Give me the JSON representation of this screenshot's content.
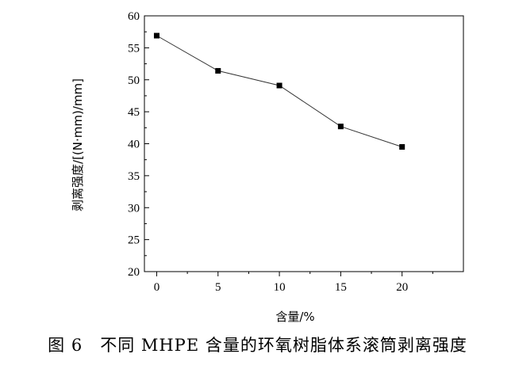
{
  "chart_data": {
    "type": "line",
    "title": "",
    "xlabel": "含量/%",
    "ylabel": "剥离强度/[(N·mm)/mm]",
    "x": [
      0,
      5,
      10,
      15,
      20
    ],
    "series": [
      {
        "values": [
          56.9,
          51.4,
          49.1,
          42.7,
          39.5
        ]
      }
    ],
    "xlim": [
      -1,
      25
    ],
    "ylim": [
      20,
      60
    ],
    "xticks": [
      0,
      5,
      10,
      15,
      20
    ],
    "yticks": [
      20,
      25,
      30,
      35,
      40,
      45,
      50,
      55,
      60
    ],
    "grid": false,
    "marker": "square",
    "line_color": "#333333",
    "marker_color": "#000000"
  },
  "caption": "图 6　不同 MHPE 含量的环氧树脂体系滚筒剥离强度"
}
